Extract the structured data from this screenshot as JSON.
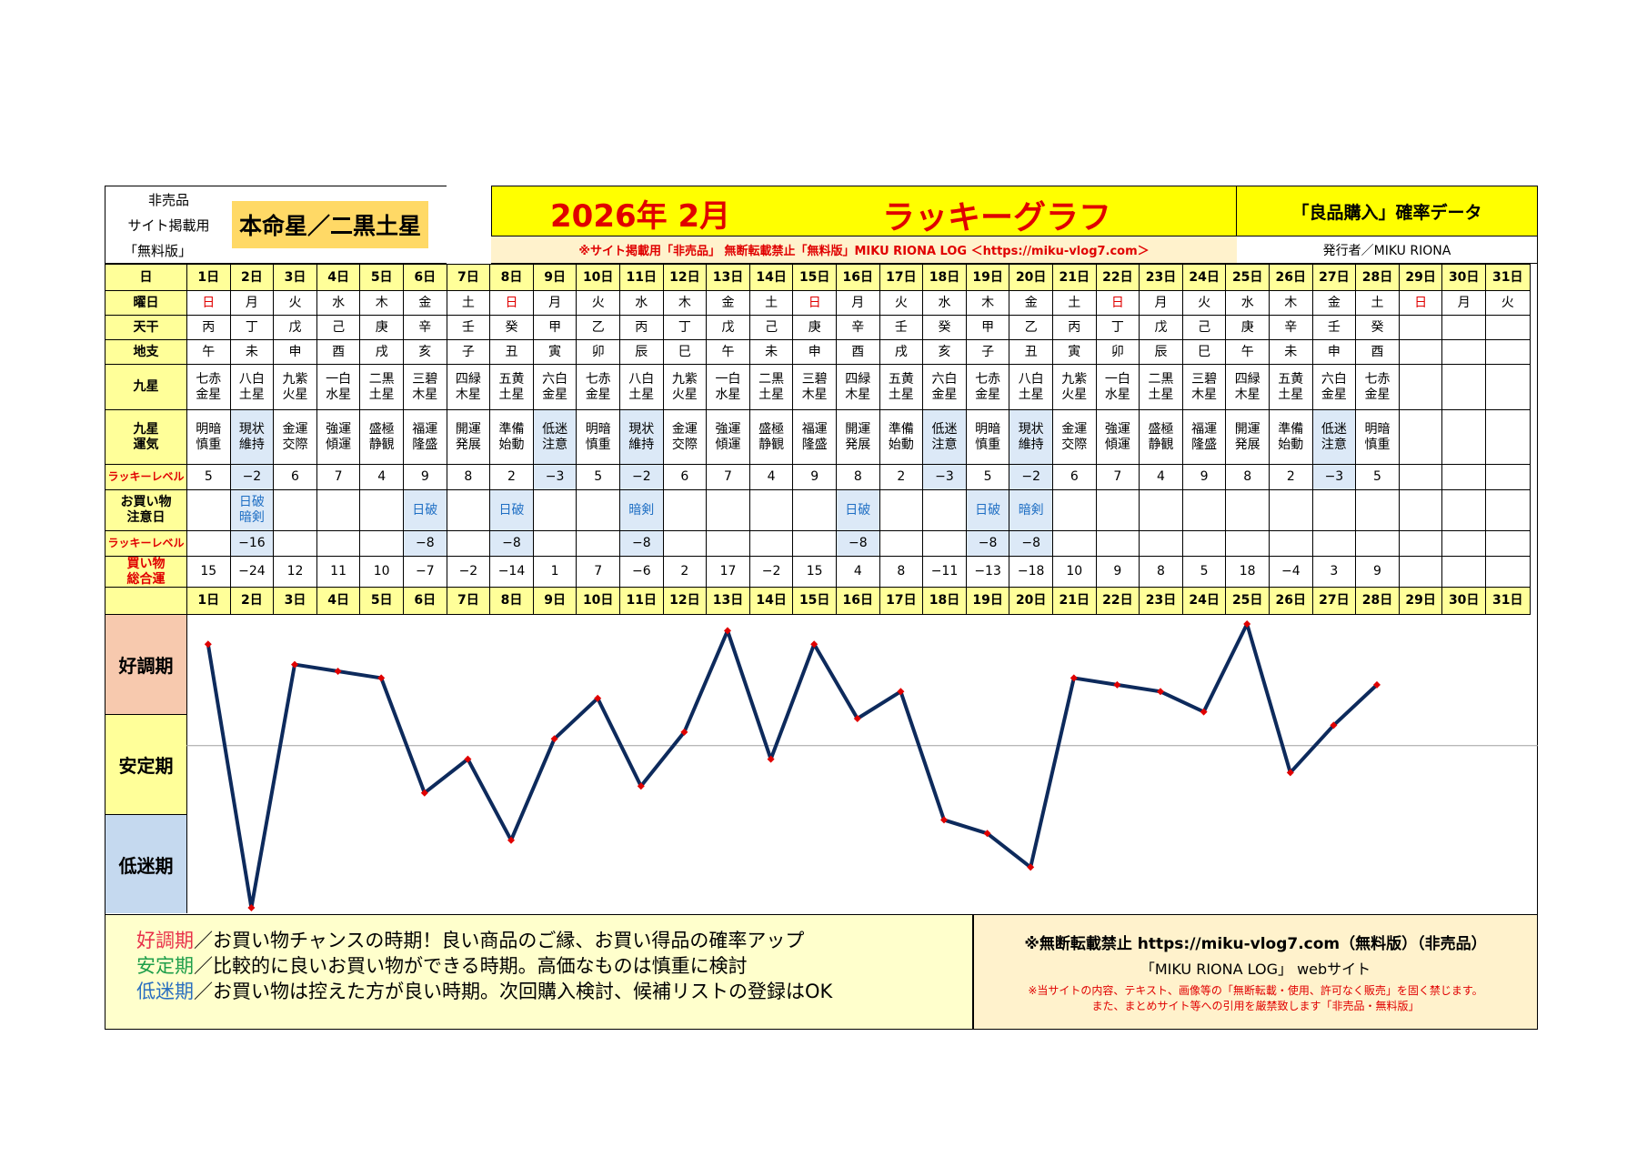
{
  "header": {
    "left_lines": [
      "非売品",
      "サイト掲載用",
      "「無料版」"
    ],
    "honmei": "本命星／二黒土星",
    "year_month": "2026年 2月",
    "graph_title": "ラッキーグラフ",
    "right_title": "「良品購入」確率データ",
    "notice": "※サイト掲載用「非売品」 無断転載禁止「無料版」MIKU RIONA LOG ＜https://miku-vlog7.com＞",
    "publisher": "発行者／MIKU RIONA"
  },
  "row_labels": {
    "day": "日",
    "weekday": "曜日",
    "tenkan": "天干",
    "chishi": "地支",
    "kyusei": "九星",
    "kyusei_luck": "九星\n運気",
    "lucky_level": "ラッキーレベル",
    "caution": "お買い物\n注意日",
    "lucky_level2": "ラッキーレベル",
    "total": "買い物\n総合運"
  },
  "days": [
    "1日",
    "2日",
    "3日",
    "4日",
    "5日",
    "6日",
    "7日",
    "8日",
    "9日",
    "10日",
    "11日",
    "12日",
    "13日",
    "14日",
    "15日",
    "16日",
    "17日",
    "18日",
    "19日",
    "20日",
    "21日",
    "22日",
    "23日",
    "24日",
    "25日",
    "26日",
    "27日",
    "28日",
    "29日",
    "30日",
    "31日"
  ],
  "weekdays": [
    "日",
    "月",
    "火",
    "水",
    "木",
    "金",
    "土",
    "日",
    "月",
    "火",
    "水",
    "木",
    "金",
    "土",
    "日",
    "月",
    "火",
    "水",
    "木",
    "金",
    "土",
    "日",
    "月",
    "火",
    "水",
    "木",
    "金",
    "土",
    "日",
    "月",
    "火"
  ],
  "weekday_red": [
    true,
    false,
    false,
    false,
    false,
    false,
    false,
    true,
    false,
    false,
    false,
    false,
    false,
    false,
    true,
    false,
    false,
    false,
    false,
    false,
    false,
    true,
    false,
    false,
    false,
    false,
    false,
    false,
    true,
    false,
    false
  ],
  "tenkan": [
    "丙",
    "丁",
    "戊",
    "己",
    "庚",
    "辛",
    "壬",
    "癸",
    "甲",
    "乙",
    "丙",
    "丁",
    "戊",
    "己",
    "庚",
    "辛",
    "壬",
    "癸",
    "甲",
    "乙",
    "丙",
    "丁",
    "戊",
    "己",
    "庚",
    "辛",
    "壬",
    "癸",
    "",
    "",
    ""
  ],
  "chishi": [
    "午",
    "未",
    "申",
    "酉",
    "戌",
    "亥",
    "子",
    "丑",
    "寅",
    "卯",
    "辰",
    "巳",
    "午",
    "未",
    "申",
    "酉",
    "戌",
    "亥",
    "子",
    "丑",
    "寅",
    "卯",
    "辰",
    "巳",
    "午",
    "未",
    "申",
    "酉",
    "",
    "",
    ""
  ],
  "kyusei": [
    "七赤\n金星",
    "八白\n土星",
    "九紫\n火星",
    "一白\n水星",
    "二黒\n土星",
    "三碧\n木星",
    "四緑\n木星",
    "五黄\n土星",
    "六白\n金星",
    "七赤\n金星",
    "八白\n土星",
    "九紫\n火星",
    "一白\n水星",
    "二黒\n土星",
    "三碧\n木星",
    "四緑\n木星",
    "五黄\n土星",
    "六白\n金星",
    "七赤\n金星",
    "八白\n土星",
    "九紫\n火星",
    "一白\n水星",
    "二黒\n土星",
    "三碧\n木星",
    "四緑\n木星",
    "五黄\n土星",
    "六白\n金星",
    "七赤\n金星",
    "",
    "",
    ""
  ],
  "kyusei_luck": [
    "明暗\n慎重",
    "現状\n維持",
    "金運\n交際",
    "強運\n傾運",
    "盛極\n静観",
    "福運\n隆盛",
    "開運\n発展",
    "準備\n始動",
    "低迷\n注意",
    "明暗\n慎重",
    "現状\n維持",
    "金運\n交際",
    "強運\n傾運",
    "盛極\n静観",
    "福運\n隆盛",
    "開運\n発展",
    "準備\n始動",
    "低迷\n注意",
    "明暗\n慎重",
    "現状\n維持",
    "金運\n交際",
    "強運\n傾運",
    "盛極\n静観",
    "福運\n隆盛",
    "開運\n発展",
    "準備\n始動",
    "低迷\n注意",
    "明暗\n慎重",
    "",
    "",
    ""
  ],
  "lucky_level": [
    "5",
    "−2",
    "6",
    "7",
    "4",
    "9",
    "8",
    "2",
    "−3",
    "5",
    "−2",
    "6",
    "7",
    "4",
    "9",
    "8",
    "2",
    "−3",
    "5",
    "−2",
    "6",
    "7",
    "4",
    "9",
    "8",
    "2",
    "−3",
    "5",
    "",
    "",
    ""
  ],
  "caution": [
    "",
    "日破\n暗剣",
    "",
    "",
    "",
    "日破",
    "",
    "日破",
    "",
    "",
    "暗剣",
    "",
    "",
    "",
    "",
    "日破",
    "",
    "",
    "日破",
    "暗剣",
    "",
    "",
    "",
    "",
    "",
    "",
    "",
    "",
    "",
    "",
    ""
  ],
  "lucky_level2": [
    "",
    "−16",
    "",
    "",
    "",
    "−8",
    "",
    "−8",
    "",
    "",
    "−8",
    "",
    "",
    "",
    "",
    "−8",
    "",
    "",
    "−8",
    "−8",
    "",
    "",
    "",
    "",
    "",
    "",
    "",
    "",
    "",
    "",
    ""
  ],
  "total": [
    "15",
    "−24",
    "12",
    "11",
    "10",
    "−7",
    "−2",
    "−14",
    "1",
    "7",
    "−6",
    "2",
    "17",
    "−2",
    "15",
    "4",
    "8",
    "−11",
    "−13",
    "−18",
    "10",
    "9",
    "8",
    "5",
    "18",
    "−4",
    "3",
    "9",
    "",
    "",
    ""
  ],
  "zones": [
    "好調期",
    "安定期",
    "低迷期"
  ],
  "legend": [
    {
      "key": "好調期",
      "text": "／お買い物チャンスの時期！良い商品のご縁、お買い得品の確率アップ",
      "color": "#e8304a"
    },
    {
      "key": "安定期",
      "text": "／比較的に良いお買い物ができる時期。高価なものは慎重に検討",
      "color": "#1e9e4a"
    },
    {
      "key": "低迷期",
      "text": "／お買い物は控えた方が良い時期。次回購入検討、候補リストの登録はOK",
      "color": "#2a6fc0"
    }
  ],
  "footer": {
    "line1": "※無断転載禁止 https://miku-vlog7.com（無料版）（非売品）",
    "line2": "「MIKU RIONA LOG」 webサイト",
    "line3": "※当サイトの内容、テキスト、画像等の「無断転載・使用、許可なく販売」を固く禁じます。",
    "line4": "また、まとめサイト等への引用を厳禁致します「非売品・無料版」"
  },
  "colors": {
    "line": "#0d2a5c",
    "marker": "#e00000",
    "zone_good": "#f7c9ae",
    "zone_stable": "#ffff99",
    "zone_low": "#c5d9ef",
    "header_yellow": "#ffff00",
    "honmei_bg": "#ffd966",
    "footer_right_bg": "#fff2cc"
  },
  "chart_data": {
    "type": "line",
    "title": "ラッキーグラフ",
    "categories": [
      "1日",
      "2日",
      "3日",
      "4日",
      "5日",
      "6日",
      "7日",
      "8日",
      "9日",
      "10日",
      "11日",
      "12日",
      "13日",
      "14日",
      "15日",
      "16日",
      "17日",
      "18日",
      "19日",
      "20日",
      "21日",
      "22日",
      "23日",
      "24日",
      "25日",
      "26日",
      "27日",
      "28日"
    ],
    "series": [
      {
        "values": [
          15,
          -24,
          12,
          11,
          10,
          -7,
          -2,
          -14,
          1,
          7,
          -6,
          2,
          17,
          -2,
          15,
          4,
          8,
          -11,
          -13,
          -18,
          10,
          9,
          8,
          5,
          18,
          -4,
          3,
          9
        ]
      }
    ],
    "ylim": [
      -24,
      18
    ],
    "gridline_at": 0,
    "grid": false
  }
}
